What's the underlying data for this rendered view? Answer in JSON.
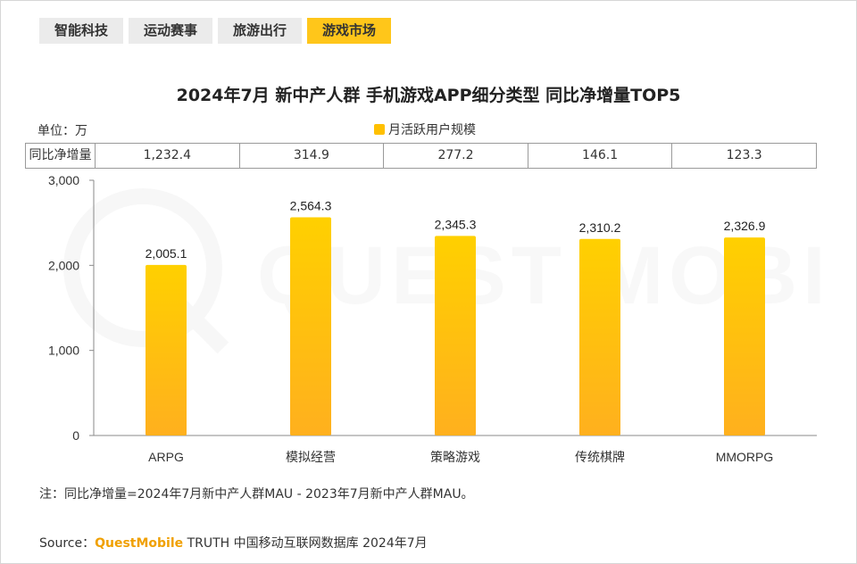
{
  "tabs": [
    {
      "label": "智能科技",
      "active": false
    },
    {
      "label": "运动赛事",
      "active": false
    },
    {
      "label": "旅游出行",
      "active": false
    },
    {
      "label": "游戏市场",
      "active": true
    }
  ],
  "colors": {
    "bar_top": "#ffd000",
    "bar_bottom": "#ffb01e",
    "tab_active": "#ffc61a",
    "brand": "#f0a000"
  },
  "watermark_text": "QUEST MOBILE",
  "growth_row": {
    "label": "同比净增量",
    "values": [
      "1,232.4",
      "314.9",
      "277.2",
      "146.1",
      "123.3"
    ]
  },
  "unit_label": "单位：万",
  "chart_data": {
    "type": "bar",
    "title": "2024年7月 新中产人群 手机游戏APP细分类型 同比净增量TOP5",
    "categories": [
      "ARPG",
      "模拟经营",
      "策略游戏",
      "传统棋牌",
      "MMORPG"
    ],
    "series": [
      {
        "name": "月活跃用户规模",
        "values": [
          2005.1,
          2564.3,
          2345.3,
          2310.2,
          2326.9
        ]
      }
    ],
    "value_labels": [
      "2,005.1",
      "2,564.3",
      "2,345.3",
      "2,310.2",
      "2,326.9"
    ],
    "yticks": [
      0,
      1000,
      2000,
      3000
    ],
    "ytick_labels": [
      "0",
      "1,000",
      "2,000",
      "3,000"
    ],
    "ylim": [
      0,
      3000
    ],
    "xlabel": "",
    "ylabel": "",
    "grid": false,
    "legend": "top-center"
  },
  "note": "注：同比净增量=2024年7月新中产人群MAU - 2023年7月新中产人群MAU。",
  "source": {
    "prefix": "Source：",
    "brand": "QuestMobile",
    "suffix": " TRUTH 中国移动互联网数据库 2024年7月"
  }
}
